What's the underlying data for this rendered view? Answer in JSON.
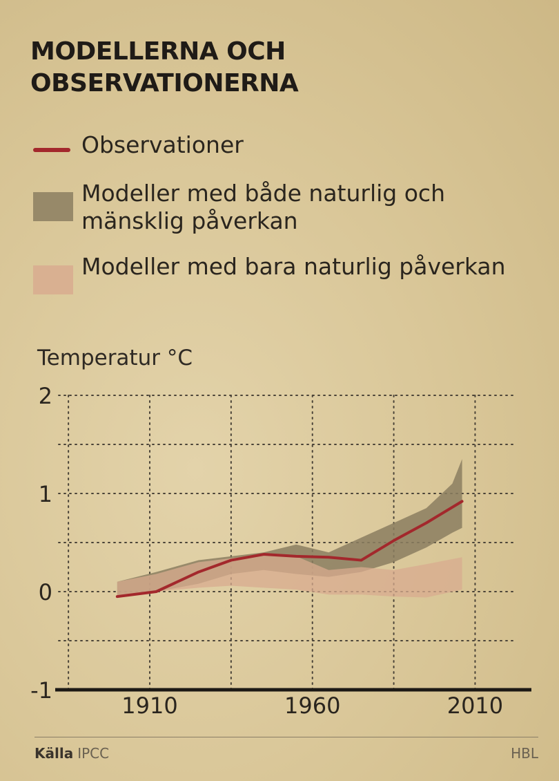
{
  "title_lines": [
    "MODELLERNA OCH",
    "OBSERVATIONERNA"
  ],
  "legend": [
    {
      "label": "Observationer",
      "kind": "line",
      "color": "#a3282c"
    },
    {
      "label": "Modeller med både naturlig och mänsklig påverkan",
      "kind": "band",
      "color": "#8b7e60"
    },
    {
      "label": "Modeller med bara naturlig påverkan",
      "kind": "band",
      "color": "#d8ab8f"
    }
  ],
  "chart_data": {
    "type": "line",
    "ylabel": "Temperatur °C",
    "xlabel": "",
    "xlim": [
      1882,
      2022
    ],
    "ylim": [
      -1,
      2
    ],
    "x_ticks": [
      1910,
      1960,
      2010
    ],
    "y_ticks": [
      2,
      1,
      0,
      -1
    ],
    "grid": true,
    "series": [
      {
        "name": "Observationer",
        "kind": "line",
        "color": "#a3282c",
        "points": [
          [
            1900,
            -0.05
          ],
          [
            1912,
            0.0
          ],
          [
            1925,
            0.2
          ],
          [
            1935,
            0.32
          ],
          [
            1945,
            0.38
          ],
          [
            1955,
            0.36
          ],
          [
            1965,
            0.35
          ],
          [
            1975,
            0.32
          ],
          [
            1985,
            0.52
          ],
          [
            1995,
            0.7
          ],
          [
            2006,
            0.92
          ]
        ]
      },
      {
        "name": "Modeller med både naturlig och mänsklig påverkan",
        "kind": "band",
        "color": "#8b7e60",
        "upper": [
          [
            1900,
            0.1
          ],
          [
            1912,
            0.2
          ],
          [
            1925,
            0.32
          ],
          [
            1935,
            0.36
          ],
          [
            1945,
            0.4
          ],
          [
            1955,
            0.48
          ],
          [
            1965,
            0.4
          ],
          [
            1975,
            0.55
          ],
          [
            1985,
            0.7
          ],
          [
            1995,
            0.85
          ],
          [
            2003,
            1.1
          ],
          [
            2006,
            1.35
          ]
        ],
        "lower": [
          [
            1900,
            -0.05
          ],
          [
            1912,
            0.0
          ],
          [
            1925,
            0.08
          ],
          [
            1935,
            0.18
          ],
          [
            1945,
            0.22
          ],
          [
            1955,
            0.18
          ],
          [
            1965,
            0.15
          ],
          [
            1975,
            0.2
          ],
          [
            1985,
            0.3
          ],
          [
            1995,
            0.45
          ],
          [
            2003,
            0.6
          ],
          [
            2006,
            0.65
          ]
        ]
      },
      {
        "name": "Modeller med bara naturlig påverkan",
        "kind": "band",
        "color": "#d8ab8f",
        "upper": [
          [
            1900,
            0.1
          ],
          [
            1912,
            0.18
          ],
          [
            1925,
            0.3
          ],
          [
            1935,
            0.34
          ],
          [
            1945,
            0.38
          ],
          [
            1955,
            0.36
          ],
          [
            1965,
            0.22
          ],
          [
            1975,
            0.25
          ],
          [
            1985,
            0.22
          ],
          [
            1995,
            0.28
          ],
          [
            2006,
            0.35
          ]
        ],
        "lower": [
          [
            1900,
            -0.05
          ],
          [
            1912,
            0.0
          ],
          [
            1925,
            0.04
          ],
          [
            1935,
            0.06
          ],
          [
            1945,
            0.04
          ],
          [
            1955,
            0.02
          ],
          [
            1965,
            -0.03
          ],
          [
            1975,
            -0.03
          ],
          [
            1985,
            -0.05
          ],
          [
            1995,
            -0.06
          ],
          [
            2006,
            0.02
          ]
        ]
      }
    ]
  },
  "footer": {
    "source_label": "Källa",
    "source_value": "IPCC",
    "brand": "HBL"
  }
}
